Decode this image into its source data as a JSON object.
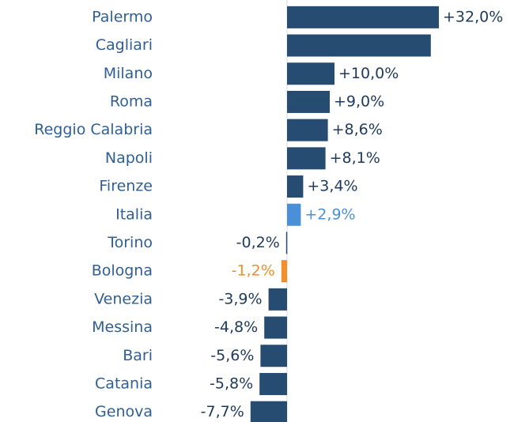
{
  "chart_data": {
    "type": "hbar",
    "categories": [
      "Palermo",
      "Cagliari",
      "Milano",
      "Roma",
      "Reggio Calabria",
      "Napoli",
      "Firenze",
      "Italia",
      "Torino",
      "Bologna",
      "Venezia",
      "Messina",
      "Bari",
      "Catania",
      "Genova"
    ],
    "values": [
      32.0,
      30.3,
      10.0,
      9.0,
      8.6,
      8.1,
      3.4,
      2.9,
      -0.2,
      -1.2,
      -3.9,
      -4.8,
      -5.6,
      -5.8,
      -7.7
    ],
    "value_labels": [
      "+32,0%",
      null,
      "+10,0%",
      "+9,0%",
      "+8,6%",
      "+8,1%",
      "+3,4%",
      "+2,9%",
      "-0,2%",
      "-1,2%",
      "-3,9%",
      "-4,8%",
      "-5,6%",
      "-5,8%",
      "-7,7%"
    ],
    "colors": [
      "#264c72",
      "#264c72",
      "#264c72",
      "#264c72",
      "#264c72",
      "#264c72",
      "#264c72",
      "#4a90d9",
      "#264c72",
      "#f28e2b",
      "#264c72",
      "#264c72",
      "#264c72",
      "#264c72",
      "#264c72"
    ],
    "xlim": [
      -10,
      34
    ]
  }
}
